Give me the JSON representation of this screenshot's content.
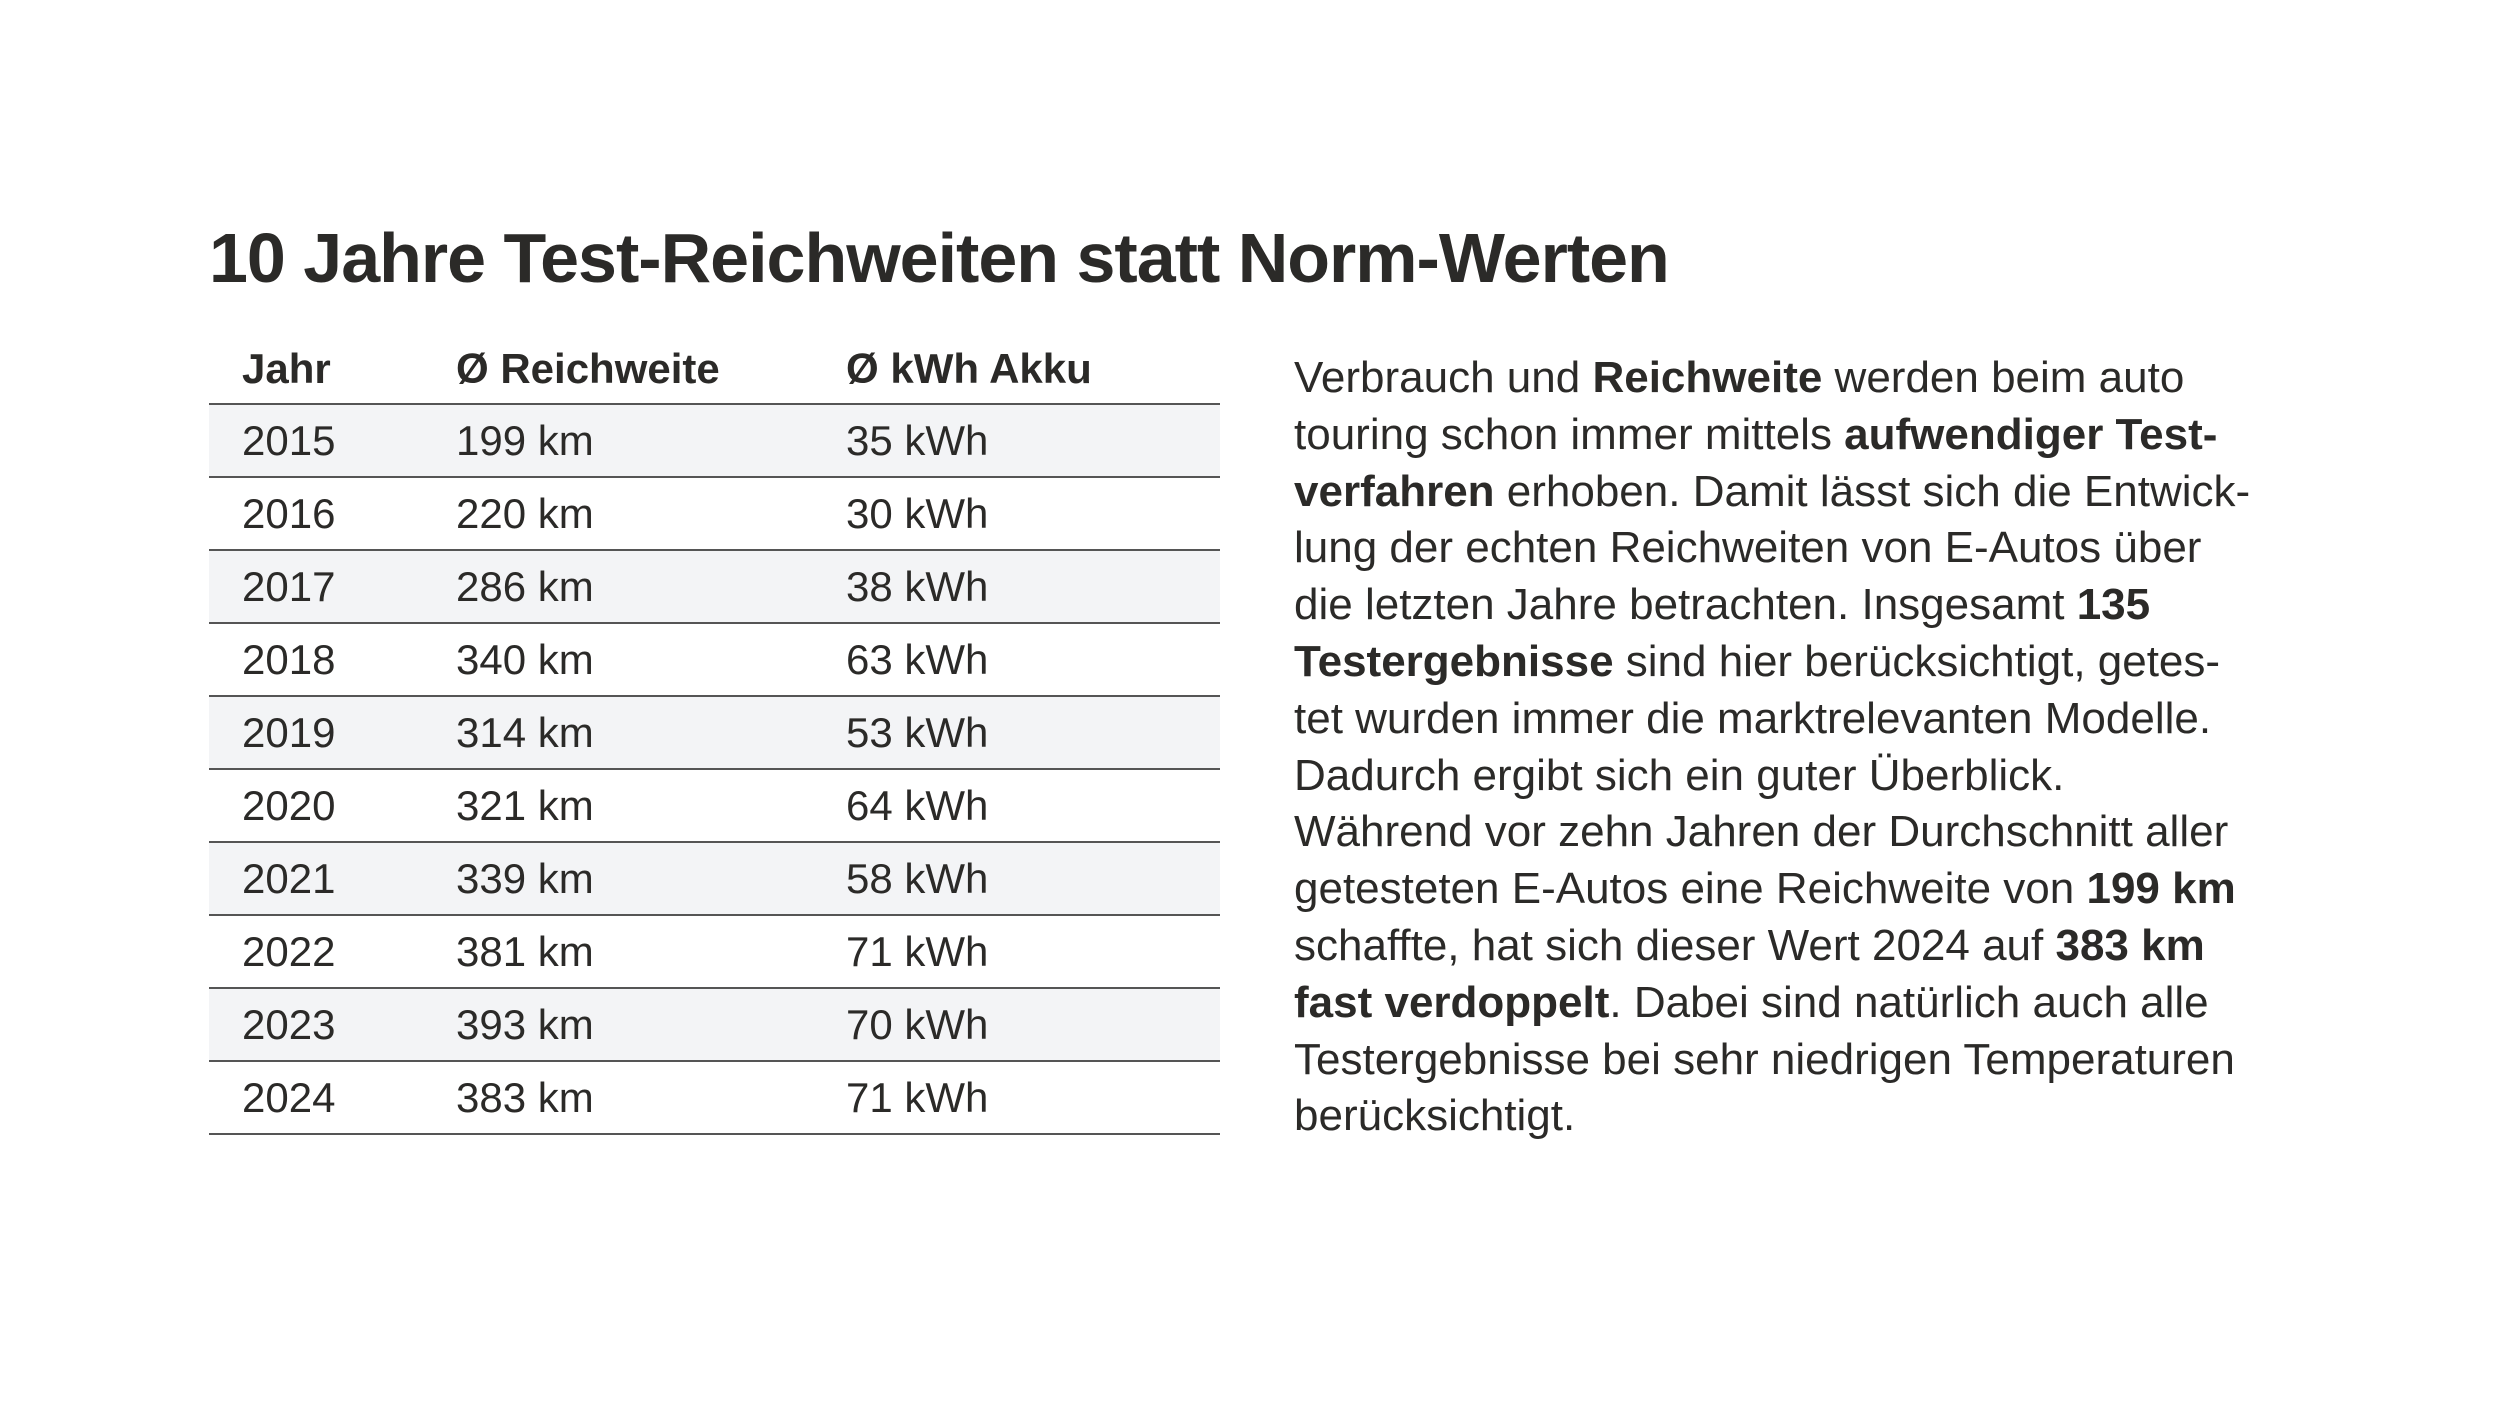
{
  "title": "10 Jahre Test-Reichweiten statt Norm-Werten",
  "table": {
    "header": [
      "Jahr",
      "Ø Reichweite",
      "Ø kWh Akku"
    ],
    "rows": [
      [
        "2015",
        "199 km",
        "35 kWh"
      ],
      [
        "2016",
        "220 km",
        "30 kWh"
      ],
      [
        "2017",
        "286 km",
        "38 kWh"
      ],
      [
        "2018",
        "340 km",
        "63 kWh"
      ],
      [
        "2019",
        "314 km",
        "53 kWh"
      ],
      [
        "2020",
        "321 km",
        "64 kWh"
      ],
      [
        "2021",
        "339 km",
        "58 kWh"
      ],
      [
        "2022",
        "381 km",
        "71 kWh"
      ],
      [
        "2023",
        "393 km",
        "70 kWh"
      ],
      [
        "2024",
        "383 km",
        "71 kWh"
      ]
    ]
  },
  "paragraph": {
    "lines": [
      [
        {
          "text": "Verbrauch und "
        },
        {
          "text": "Reichweite",
          "bold": true
        },
        {
          "text": " werden beim auto"
        }
      ],
      [
        {
          "text": "touring schon immer mittels "
        },
        {
          "text": "aufwendiger Test-",
          "bold": true
        }
      ],
      [
        {
          "text": "verfahren",
          "bold": true
        },
        {
          "text": " erhoben. Damit lässt sich die Entwick-"
        }
      ],
      [
        {
          "text": "lung der echten Reichweiten von E-Autos über"
        }
      ],
      [
        {
          "text": "die letzten Jahre betrachten. Insgesamt "
        },
        {
          "text": "135",
          "bold": true
        }
      ],
      [
        {
          "text": "Testergebnisse",
          "bold": true
        },
        {
          "text": " sind hier berücksichtigt, getes-"
        }
      ],
      [
        {
          "text": "tet wurden immer die marktrelevanten Modelle."
        }
      ],
      [
        {
          "text": "Dadurch ergibt sich ein guter Überblick."
        }
      ],
      [
        {
          "text": "Während vor zehn Jahren der Durchschnitt aller"
        }
      ],
      [
        {
          "text": "getesteten E-Autos eine Reichweite von "
        },
        {
          "text": "199 km",
          "bold": true
        }
      ],
      [
        {
          "text": "schaffte, hat sich dieser Wert 2024 auf "
        },
        {
          "text": "383 km",
          "bold": true
        }
      ],
      [
        {
          "text": "fast verdoppelt",
          "bold": true
        },
        {
          "text": ". Dabei sind natürlich auch alle"
        }
      ],
      [
        {
          "text": "Testergebnisse bei sehr niedrigen Temperaturen"
        }
      ],
      [
        {
          "text": "berücksichtigt."
        }
      ]
    ]
  }
}
